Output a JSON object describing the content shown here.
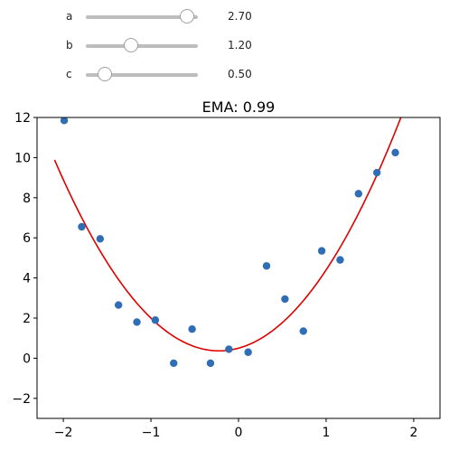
{
  "sliders": [
    {
      "label": "a",
      "value": 2.7,
      "value_text": "2.70",
      "min": 0.0,
      "max": 3.0
    },
    {
      "label": "b",
      "value": 1.2,
      "value_text": "1.20",
      "min": 0.0,
      "max": 3.0
    },
    {
      "label": "c",
      "value": 0.5,
      "value_text": "0.50",
      "min": 0.0,
      "max": 3.0
    }
  ],
  "chart_data": {
    "type": "scatter",
    "title": "EMA: 0.99",
    "xlim": [
      -2.3,
      2.3
    ],
    "ylim": [
      -3,
      12
    ],
    "x_ticks": [
      -2,
      -1,
      0,
      1,
      2
    ],
    "x_tick_labels": [
      "−2",
      "−1",
      "0",
      "1",
      "2"
    ],
    "y_ticks": [
      -2,
      0,
      2,
      4,
      6,
      8,
      10,
      12
    ],
    "y_tick_labels": [
      "−2",
      "0",
      "2",
      "4",
      "6",
      "8",
      "10",
      "12"
    ],
    "grid": false,
    "series": [
      {
        "kind": "points",
        "color": "#2f6db5",
        "x": [
          -1.99,
          -1.79,
          -1.58,
          -1.37,
          -1.16,
          -0.95,
          -0.74,
          -0.53,
          -0.32,
          -0.11,
          0.11,
          0.32,
          0.53,
          0.74,
          0.95,
          1.16,
          1.37,
          1.58,
          1.79
        ],
        "y": [
          11.85,
          6.55,
          5.95,
          2.65,
          1.8,
          1.9,
          -0.25,
          1.45,
          -0.25,
          0.45,
          0.3,
          4.6,
          2.95,
          1.35,
          5.35,
          4.9,
          8.2,
          9.25,
          10.25
        ]
      },
      {
        "kind": "curve",
        "color": "#e00000",
        "equation": "y = a*x^2 + b*x + c",
        "x_range": [
          -2.1,
          2.3
        ]
      }
    ]
  }
}
